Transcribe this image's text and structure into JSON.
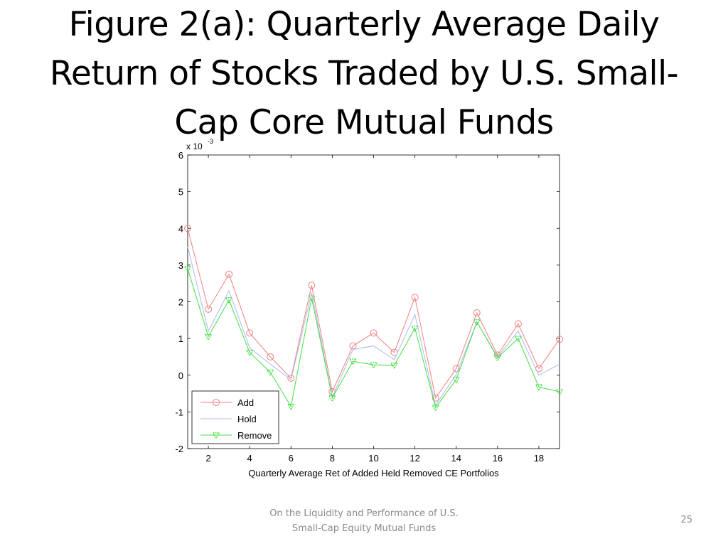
{
  "slide": {
    "title": "Figure 2(a): Quarterly Average Daily Return of Stocks Traded by U.S. Small-Cap Core Mutual Funds",
    "footer_line1": "On the Liquidity and Performance of U.S.",
    "footer_line2": "Small-Cap Equity Mutual Funds",
    "page_number": "25"
  },
  "chart_data": {
    "type": "line",
    "title": "",
    "xlabel": "Quarterly Average Ret of Added Held Removed CE Portfolios",
    "ylabel": "",
    "y_multiplier_base": "x 10",
    "y_multiplier_exp": "-3",
    "xlim": [
      1,
      19
    ],
    "ylim": [
      -2,
      6
    ],
    "x_ticks": [
      2,
      4,
      6,
      8,
      10,
      12,
      14,
      16,
      18
    ],
    "y_ticks": [
      -2,
      -1,
      0,
      1,
      2,
      3,
      4,
      5,
      6
    ],
    "grid": false,
    "legend_position": "bottom-left",
    "x": [
      1,
      2,
      3,
      4,
      5,
      6,
      7,
      8,
      9,
      10,
      11,
      12,
      13,
      14,
      15,
      16,
      17,
      18,
      19
    ],
    "series": [
      {
        "name": "Add",
        "color": "#f08080",
        "marker": "circle",
        "values": [
          4.0,
          1.8,
          2.75,
          1.15,
          0.5,
          -0.08,
          2.45,
          -0.45,
          0.8,
          1.15,
          0.62,
          2.12,
          -0.62,
          0.18,
          1.7,
          0.55,
          1.4,
          0.18,
          0.98
        ]
      },
      {
        "name": "Hold",
        "color": "#b0b8f0",
        "marker": "none",
        "values": [
          3.5,
          1.2,
          2.3,
          0.75,
          0.3,
          -0.12,
          2.25,
          -0.6,
          0.7,
          0.8,
          0.42,
          1.65,
          -0.82,
          0.02,
          1.45,
          0.5,
          1.2,
          0.0,
          0.3
        ]
      },
      {
        "name": "Remove",
        "color": "#40e040",
        "marker": "triangle",
        "values": [
          2.9,
          1.05,
          2.05,
          0.62,
          0.08,
          -0.85,
          2.1,
          -0.62,
          0.38,
          0.28,
          0.27,
          1.28,
          -0.88,
          -0.12,
          1.45,
          0.48,
          1.0,
          -0.32,
          -0.45
        ]
      }
    ]
  }
}
